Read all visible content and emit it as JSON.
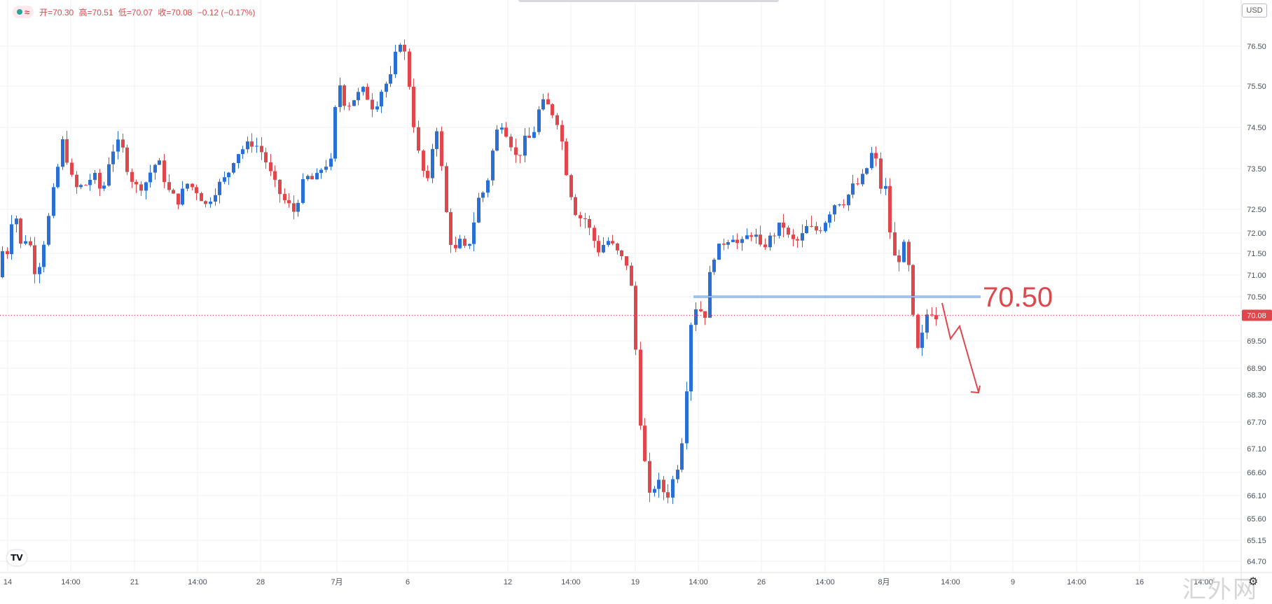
{
  "legend": {
    "wave_symbol": "≈",
    "open": "开=70.30",
    "high": "高=70.51",
    "low": "低=70.07",
    "close": "收=70.08",
    "change": "−0.12 (−0.17%)"
  },
  "currency_button": "USD",
  "logo_text": "TV",
  "settings_icon": "gear-icon",
  "watermark": "汇外网",
  "colors": {
    "up": "#2a6fd6",
    "down": "#e0474c",
    "grid": "#eef0f3",
    "annotation": "#e0474c",
    "level_line": "#2a6fd6",
    "price_tag_bg": "#e0474c"
  },
  "chart_data": {
    "type": "candlestick",
    "y_axis_ticks": [
      "76.50",
      "75.50",
      "74.50",
      "73.50",
      "72.50",
      "72.00",
      "71.50",
      "71.00",
      "70.50",
      "69.50",
      "68.90",
      "68.30",
      "67.70",
      "67.10",
      "66.60",
      "66.10",
      "65.60",
      "65.15",
      "64.70"
    ],
    "x_axis_ticks": [
      "14",
      "14:00",
      "21",
      "14:00",
      "28",
      "7月",
      "6",
      "12",
      "14:00",
      "19",
      "14:00",
      "26",
      "14:00",
      "8月",
      "14:00",
      "9",
      "14:00",
      "16",
      "14:00"
    ],
    "y_range": [
      64.5,
      76.9
    ],
    "last_price": "70.08",
    "level_line": {
      "value": 70.5,
      "label": "70.50"
    },
    "forecast_arrow": "down",
    "ohlc_last": {
      "open": 70.3,
      "high": 70.51,
      "low": 70.07,
      "close": 70.08
    }
  }
}
